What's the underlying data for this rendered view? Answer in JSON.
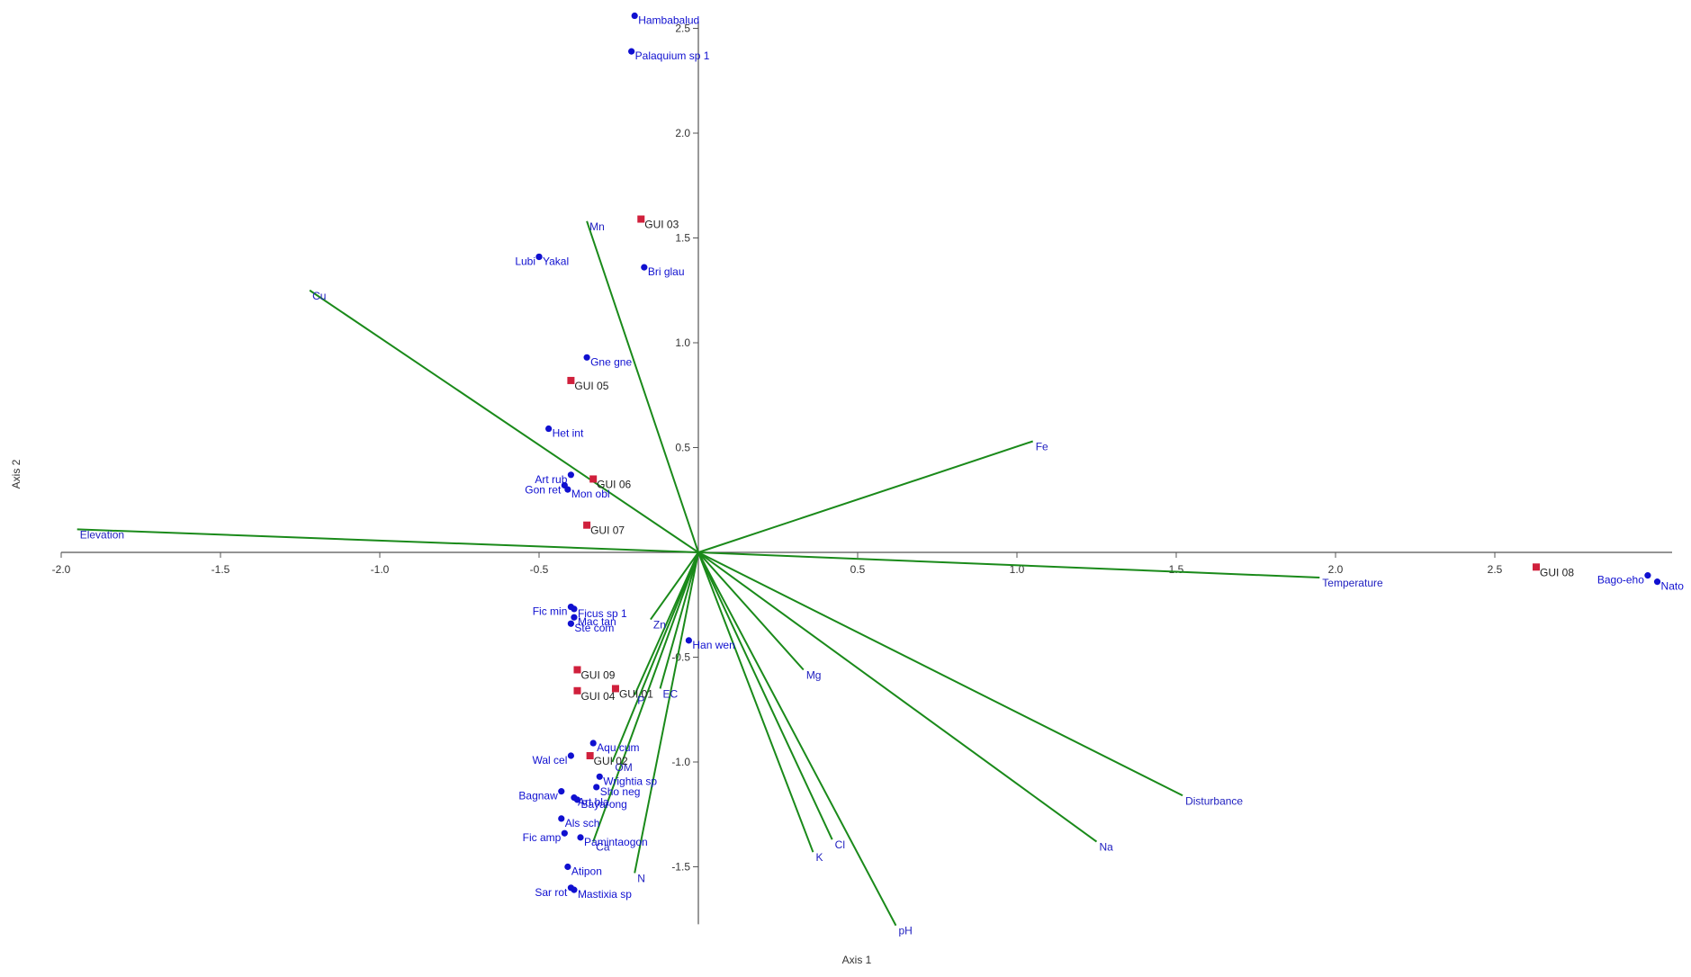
{
  "chart_data": {
    "type": "scatter",
    "xlabel": "Axis 1",
    "ylabel": "Axis 2",
    "xlim": [
      -2.0,
      3.0
    ],
    "ylim": [
      -1.8,
      2.5
    ],
    "x_ticks": [
      "-2.0",
      "-1.5",
      "-1.0",
      "-0.5",
      "0.5",
      "1.0",
      "1.5",
      "2.0",
      "2.5"
    ],
    "x_tick_values": [
      -2.0,
      -1.5,
      -1.0,
      -0.5,
      0.5,
      1.0,
      1.5,
      2.0,
      2.5
    ],
    "y_ticks": [
      "2.5",
      "2.0",
      "1.5",
      "1.0",
      "0.5",
      "-0.5",
      "-1.0",
      "-1.5"
    ],
    "y_tick_values": [
      2.5,
      2.0,
      1.5,
      1.0,
      0.5,
      -0.5,
      -1.0,
      -1.5
    ],
    "grid": false,
    "colors": {
      "species": "#1010d0",
      "site": "#d0203c",
      "vector": "#1a8a1a",
      "axis": "#555555",
      "site_text": "#222222"
    },
    "species": [
      {
        "label": "Hambabalud",
        "x": -0.2,
        "y": 2.56
      },
      {
        "label": "Palaquium sp 1",
        "x": -0.21,
        "y": 2.39
      },
      {
        "label": "Bri glau",
        "x": -0.17,
        "y": 1.36
      },
      {
        "label": "Lubi",
        "x": -0.5,
        "y": 1.41
      },
      {
        "label": "Yakal",
        "x": -0.5,
        "y": 1.41
      },
      {
        "label": "Gne gne",
        "x": -0.35,
        "y": 0.93
      },
      {
        "label": "Het int",
        "x": -0.47,
        "y": 0.59
      },
      {
        "label": "Art rub",
        "x": -0.4,
        "y": 0.37
      },
      {
        "label": "Gon ret",
        "x": -0.42,
        "y": 0.32
      },
      {
        "label": "Mon obl",
        "x": -0.41,
        "y": 0.3
      },
      {
        "label": "Fic min",
        "x": -0.4,
        "y": -0.26
      },
      {
        "label": "Ficus sp 1",
        "x": -0.39,
        "y": -0.27
      },
      {
        "label": "Mac tan",
        "x": -0.39,
        "y": -0.31
      },
      {
        "label": "Ste com",
        "x": -0.4,
        "y": -0.34
      },
      {
        "label": "Han wen",
        "x": -0.03,
        "y": -0.42
      },
      {
        "label": "Aqu cum",
        "x": -0.33,
        "y": -0.91
      },
      {
        "label": "Wal cel",
        "x": -0.4,
        "y": -0.97
      },
      {
        "label": "Wrightia sp",
        "x": -0.31,
        "y": -1.07
      },
      {
        "label": "Sho neg",
        "x": -0.32,
        "y": -1.12
      },
      {
        "label": "Bagnaw",
        "x": -0.43,
        "y": -1.14
      },
      {
        "label": "Art bla",
        "x": -0.39,
        "y": -1.17
      },
      {
        "label": "Bayarong",
        "x": -0.38,
        "y": -1.18
      },
      {
        "label": "Als sch",
        "x": -0.43,
        "y": -1.27
      },
      {
        "label": "Fic amp",
        "x": -0.42,
        "y": -1.34
      },
      {
        "label": "Pamintaogon",
        "x": -0.37,
        "y": -1.36
      },
      {
        "label": "Atipon",
        "x": -0.41,
        "y": -1.5
      },
      {
        "label": "Sar rot",
        "x": -0.4,
        "y": -1.6
      },
      {
        "label": "Mastixia sp",
        "x": -0.39,
        "y": -1.61
      },
      {
        "label": "Bago-eho",
        "x": 2.98,
        "y": -0.11
      },
      {
        "label": "Nato",
        "x": 3.01,
        "y": -0.14
      }
    ],
    "sites": [
      {
        "label": "GUI 03",
        "x": -0.18,
        "y": 1.59
      },
      {
        "label": "GUI 05",
        "x": -0.4,
        "y": 0.82
      },
      {
        "label": "GUI 06",
        "x": -0.33,
        "y": 0.35
      },
      {
        "label": "GUI 07",
        "x": -0.35,
        "y": 0.13
      },
      {
        "label": "GUI 09",
        "x": -0.38,
        "y": -0.56
      },
      {
        "label": "GUI 01",
        "x": -0.26,
        "y": -0.65
      },
      {
        "label": "GUI 04",
        "x": -0.38,
        "y": -0.66
      },
      {
        "label": "GUI 02",
        "x": -0.34,
        "y": -0.97
      },
      {
        "label": "GUI 08",
        "x": 2.63,
        "y": -0.07
      }
    ],
    "vectors": [
      {
        "label": "Mn",
        "x": -0.35,
        "y": 1.58
      },
      {
        "label": "Cu",
        "x": -1.22,
        "y": 1.25
      },
      {
        "label": "Fe",
        "x": 1.05,
        "y": 0.53
      },
      {
        "label": "Elevation",
        "x": -1.95,
        "y": 0.11
      },
      {
        "label": "Temperature",
        "x": 1.95,
        "y": -0.12
      },
      {
        "label": "Zn",
        "x": -0.15,
        "y": -0.32
      },
      {
        "label": "Mg",
        "x": 0.33,
        "y": -0.56
      },
      {
        "label": "EC",
        "x": -0.12,
        "y": -0.65
      },
      {
        "label": "P",
        "x": -0.2,
        "y": -0.68
      },
      {
        "label": "OM",
        "x": -0.27,
        "y": -1.0
      },
      {
        "label": "Disturbance",
        "x": 1.52,
        "y": -1.16
      },
      {
        "label": "Na",
        "x": 1.25,
        "y": -1.38
      },
      {
        "label": "Cl",
        "x": 0.42,
        "y": -1.37
      },
      {
        "label": "K",
        "x": 0.36,
        "y": -1.43
      },
      {
        "label": "Ca",
        "x": -0.33,
        "y": -1.38
      },
      {
        "label": "N",
        "x": -0.2,
        "y": -1.53
      },
      {
        "label": "pH",
        "x": 0.62,
        "y": -1.78
      }
    ]
  }
}
